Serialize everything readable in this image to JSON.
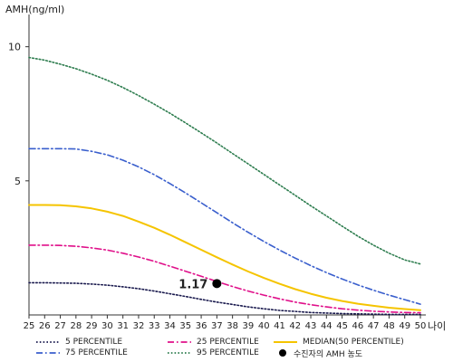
{
  "chart_data": {
    "type": "line",
    "ylabel": "AMH(ng/ml)",
    "xlabel": "나이",
    "x": [
      25,
      26,
      27,
      28,
      29,
      30,
      31,
      32,
      33,
      34,
      35,
      36,
      37,
      38,
      39,
      40,
      41,
      42,
      43,
      44,
      45,
      46,
      47,
      48,
      49,
      50
    ],
    "ylim": [
      0,
      11
    ],
    "y_ticks": [
      "5",
      "10"
    ],
    "y_tick_values": [
      5,
      10
    ],
    "series": [
      {
        "name": "5 PERCENTILE",
        "color": "#1a1a4e",
        "style": "dotted",
        "values": [
          1.2,
          1.2,
          1.19,
          1.18,
          1.15,
          1.11,
          1.05,
          0.98,
          0.89,
          0.79,
          0.69,
          0.58,
          0.48,
          0.39,
          0.3,
          0.23,
          0.17,
          0.13,
          0.09,
          0.07,
          0.05,
          0.04,
          0.03,
          0.02,
          0.02,
          0.02
        ]
      },
      {
        "name": "25 PERCENTILE",
        "color": "#e0108a",
        "style": "dashdot",
        "values": [
          2.6,
          2.6,
          2.59,
          2.56,
          2.5,
          2.42,
          2.3,
          2.16,
          2.0,
          1.82,
          1.63,
          1.44,
          1.25,
          1.06,
          0.89,
          0.74,
          0.6,
          0.48,
          0.38,
          0.3,
          0.23,
          0.18,
          0.14,
          0.11,
          0.09,
          0.08
        ]
      },
      {
        "name": "MEDIAN(50 PERCENTILE)",
        "color": "#f5c400",
        "style": "solid",
        "values": [
          4.1,
          4.1,
          4.09,
          4.05,
          3.97,
          3.85,
          3.69,
          3.48,
          3.25,
          2.99,
          2.71,
          2.43,
          2.15,
          1.88,
          1.62,
          1.38,
          1.16,
          0.96,
          0.79,
          0.64,
          0.52,
          0.42,
          0.34,
          0.27,
          0.22,
          0.18
        ]
      },
      {
        "name": "75 PERCENTILE",
        "color": "#3a5fcd",
        "style": "dashdot",
        "values": [
          6.2,
          6.2,
          6.2,
          6.19,
          6.1,
          5.97,
          5.77,
          5.52,
          5.23,
          4.9,
          4.55,
          4.18,
          3.81,
          3.44,
          3.08,
          2.74,
          2.42,
          2.12,
          1.84,
          1.58,
          1.34,
          1.12,
          0.92,
          0.74,
          0.57,
          0.4
        ]
      },
      {
        "name": "95 PERCENTILE",
        "color": "#2e7d4f",
        "style": "dotted",
        "values": [
          9.6,
          9.5,
          9.35,
          9.18,
          8.98,
          8.75,
          8.48,
          8.18,
          7.86,
          7.52,
          7.16,
          6.79,
          6.41,
          6.02,
          5.63,
          5.24,
          4.85,
          4.46,
          4.07,
          3.69,
          3.31,
          2.94,
          2.6,
          2.3,
          2.05,
          1.9
        ]
      }
    ],
    "marker": {
      "name": "수진자의 AMH 농도",
      "x": 37,
      "y": 1.17,
      "label": "1.17",
      "color": "#000000"
    },
    "grid": false,
    "legend_position": "bottom"
  }
}
